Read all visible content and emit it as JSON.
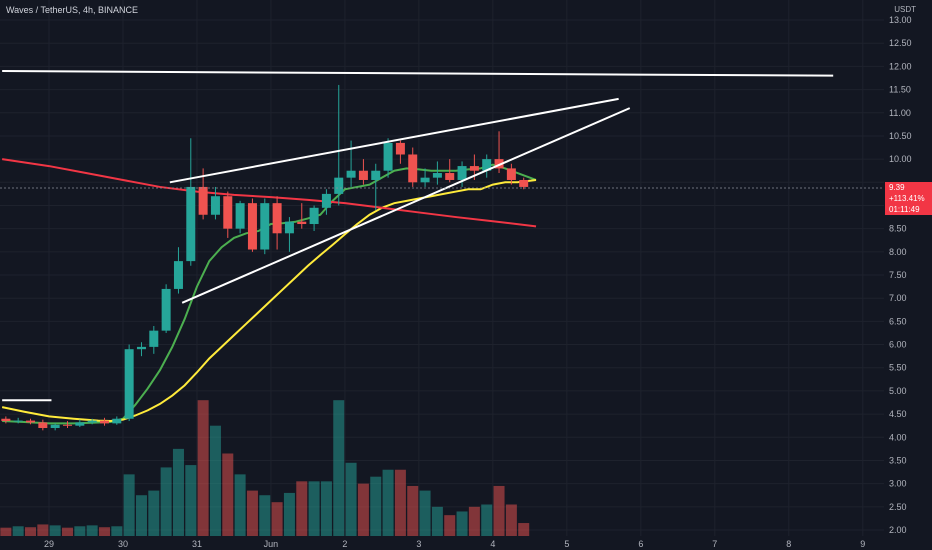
{
  "header": {
    "symbol_line": "Waves / TetherUS, 4h, BINANCE",
    "currency": "USDT"
  },
  "price_tag": {
    "price": "9.39",
    "change": "+113.41%",
    "countdown": "01:11:49"
  },
  "colors": {
    "background": "#131722",
    "up": "#26a69a",
    "down": "#ef5350",
    "ema_green": "#4caf50",
    "ema_yellow": "#ffeb3b",
    "ema_red": "#f23645",
    "trendline": "#ffffff",
    "tag": "#f23645"
  },
  "chart_data": {
    "type": "candlestick",
    "symbol": "Waves / TetherUS",
    "interval": "4h",
    "exchange": "BINANCE",
    "ylim": [
      2.0,
      13.0
    ],
    "y_ticks": [
      "2.00",
      "2.50",
      "3.00",
      "3.50",
      "4.00",
      "4.50",
      "5.00",
      "5.50",
      "6.00",
      "6.50",
      "7.00",
      "7.50",
      "8.00",
      "8.50",
      "9.00",
      "9.50",
      "10.00",
      "10.50",
      "11.00",
      "11.50",
      "12.00",
      "12.50",
      "13.00"
    ],
    "x_ticks": [
      {
        "label": "29",
        "x": 0
      },
      {
        "label": "30",
        "x": 6
      },
      {
        "label": "31",
        "x": 12
      },
      {
        "label": "Jun",
        "x": 18
      },
      {
        "label": "2",
        "x": 24
      },
      {
        "label": "3",
        "x": 30
      },
      {
        "label": "4",
        "x": 36
      },
      {
        "label": "5",
        "x": 42
      },
      {
        "label": "6",
        "x": 48
      },
      {
        "label": "7",
        "x": 54
      },
      {
        "label": "8",
        "x": 60
      },
      {
        "label": "9",
        "x": 66
      }
    ],
    "candles": [
      {
        "x": -3.5,
        "o": 4.4,
        "h": 4.45,
        "l": 4.3,
        "c": 4.35,
        "v": 2.05
      },
      {
        "x": -2.5,
        "o": 4.35,
        "h": 4.42,
        "l": 4.3,
        "c": 4.36,
        "v": 2.08
      },
      {
        "x": -1.5,
        "o": 4.36,
        "h": 4.4,
        "l": 4.28,
        "c": 4.32,
        "v": 2.06
      },
      {
        "x": -0.5,
        "o": 4.32,
        "h": 4.38,
        "l": 4.15,
        "c": 4.2,
        "v": 2.12
      },
      {
        "x": 0.5,
        "o": 4.2,
        "h": 4.3,
        "l": 4.15,
        "c": 4.27,
        "v": 2.1
      },
      {
        "x": 1.5,
        "o": 4.27,
        "h": 4.35,
        "l": 4.2,
        "c": 4.25,
        "v": 2.05
      },
      {
        "x": 2.5,
        "o": 4.25,
        "h": 4.38,
        "l": 4.22,
        "c": 4.32,
        "v": 2.08
      },
      {
        "x": 3.5,
        "o": 4.32,
        "h": 4.4,
        "l": 4.28,
        "c": 4.36,
        "v": 2.1
      },
      {
        "x": 4.5,
        "o": 4.36,
        "h": 4.42,
        "l": 4.25,
        "c": 4.3,
        "v": 2.06
      },
      {
        "x": 5.5,
        "o": 4.3,
        "h": 4.45,
        "l": 4.27,
        "c": 4.4,
        "v": 2.08
      },
      {
        "x": 6.5,
        "o": 4.4,
        "h": 6.0,
        "l": 4.35,
        "c": 5.9,
        "v": 3.2
      },
      {
        "x": 7.5,
        "o": 5.9,
        "h": 6.05,
        "l": 5.75,
        "c": 5.95,
        "v": 2.75
      },
      {
        "x": 8.5,
        "o": 5.95,
        "h": 6.4,
        "l": 5.8,
        "c": 6.3,
        "v": 2.85
      },
      {
        "x": 9.5,
        "o": 6.3,
        "h": 7.3,
        "l": 6.25,
        "c": 7.2,
        "v": 3.35
      },
      {
        "x": 10.5,
        "o": 7.2,
        "h": 8.1,
        "l": 7.1,
        "c": 7.8,
        "v": 3.75
      },
      {
        "x": 11.5,
        "o": 7.8,
        "h": 10.45,
        "l": 7.7,
        "c": 9.4,
        "v": 3.4
      },
      {
        "x": 12.5,
        "o": 9.4,
        "h": 9.8,
        "l": 8.7,
        "c": 8.8,
        "v": 4.8
      },
      {
        "x": 13.5,
        "o": 8.8,
        "h": 9.4,
        "l": 8.7,
        "c": 9.2,
        "v": 4.25
      },
      {
        "x": 14.5,
        "o": 9.2,
        "h": 9.3,
        "l": 8.3,
        "c": 8.5,
        "v": 3.65
      },
      {
        "x": 15.5,
        "o": 8.5,
        "h": 9.1,
        "l": 8.4,
        "c": 9.05,
        "v": 3.2
      },
      {
        "x": 16.5,
        "o": 9.05,
        "h": 9.15,
        "l": 8.0,
        "c": 8.05,
        "v": 2.85
      },
      {
        "x": 17.5,
        "o": 8.05,
        "h": 9.15,
        "l": 7.95,
        "c": 9.05,
        "v": 2.75
      },
      {
        "x": 18.5,
        "o": 9.05,
        "h": 9.2,
        "l": 8.05,
        "c": 8.4,
        "v": 2.6
      },
      {
        "x": 19.5,
        "o": 8.4,
        "h": 8.75,
        "l": 8.0,
        "c": 8.65,
        "v": 2.8
      },
      {
        "x": 20.5,
        "o": 8.65,
        "h": 9.05,
        "l": 8.5,
        "c": 8.6,
        "v": 3.05
      },
      {
        "x": 21.5,
        "o": 8.6,
        "h": 9.0,
        "l": 8.45,
        "c": 8.95,
        "v": 3.05
      },
      {
        "x": 22.5,
        "o": 8.95,
        "h": 9.35,
        "l": 8.8,
        "c": 9.25,
        "v": 3.05
      },
      {
        "x": 23.5,
        "o": 9.25,
        "h": 11.6,
        "l": 9.0,
        "c": 9.6,
        "v": 4.8
      },
      {
        "x": 24.5,
        "o": 9.6,
        "h": 10.4,
        "l": 9.4,
        "c": 9.75,
        "v": 3.45
      },
      {
        "x": 25.5,
        "o": 9.75,
        "h": 10.0,
        "l": 9.45,
        "c": 9.55,
        "v": 3.0
      },
      {
        "x": 26.5,
        "o": 9.55,
        "h": 9.9,
        "l": 8.9,
        "c": 9.75,
        "v": 3.15
      },
      {
        "x": 27.5,
        "o": 9.75,
        "h": 10.45,
        "l": 9.6,
        "c": 10.35,
        "v": 3.3
      },
      {
        "x": 28.5,
        "o": 10.35,
        "h": 10.4,
        "l": 9.9,
        "c": 10.1,
        "v": 3.3
      },
      {
        "x": 29.5,
        "o": 10.1,
        "h": 10.25,
        "l": 9.4,
        "c": 9.5,
        "v": 2.95
      },
      {
        "x": 30.5,
        "o": 9.5,
        "h": 9.8,
        "l": 9.4,
        "c": 9.6,
        "v": 2.85
      },
      {
        "x": 31.5,
        "o": 9.6,
        "h": 9.95,
        "l": 9.45,
        "c": 9.7,
        "v": 2.5
      },
      {
        "x": 32.5,
        "o": 9.7,
        "h": 10.0,
        "l": 9.5,
        "c": 9.55,
        "v": 2.32
      },
      {
        "x": 33.5,
        "o": 9.55,
        "h": 9.95,
        "l": 9.4,
        "c": 9.85,
        "v": 2.4
      },
      {
        "x": 34.5,
        "o": 9.85,
        "h": 10.1,
        "l": 9.55,
        "c": 9.75,
        "v": 2.5
      },
      {
        "x": 35.5,
        "o": 9.75,
        "h": 10.1,
        "l": 9.6,
        "c": 10.0,
        "v": 2.55
      },
      {
        "x": 36.5,
        "o": 10.0,
        "h": 10.6,
        "l": 9.7,
        "c": 9.8,
        "v": 2.95
      },
      {
        "x": 37.5,
        "o": 9.8,
        "h": 9.9,
        "l": 9.45,
        "c": 9.55,
        "v": 2.55
      },
      {
        "x": 38.5,
        "o": 9.55,
        "h": 9.6,
        "l": 9.35,
        "c": 9.4,
        "v": 2.15
      }
    ],
    "series": [
      {
        "type": "line",
        "x": [
          -3.8,
          -2,
          0,
          2,
          4,
          5,
          6,
          7,
          8,
          9,
          10,
          11,
          12,
          13,
          14,
          15,
          16,
          17,
          18,
          19,
          20,
          21,
          22,
          23,
          24,
          25,
          26,
          27,
          28,
          29,
          30,
          31,
          32,
          33,
          34,
          35,
          36,
          37,
          38,
          39.5
        ],
        "y": [
          4.35,
          4.33,
          4.3,
          4.3,
          4.32,
          4.33,
          4.4,
          4.7,
          5.05,
          5.45,
          5.95,
          6.55,
          7.25,
          7.8,
          8.1,
          8.3,
          8.4,
          8.45,
          8.6,
          8.62,
          8.65,
          8.72,
          8.8,
          9.1,
          9.35,
          9.4,
          9.45,
          9.6,
          9.75,
          9.8,
          9.78,
          9.75,
          9.75,
          9.75,
          9.78,
          9.8,
          9.88,
          9.8,
          9.7,
          9.55
        ]
      },
      {
        "type": "line",
        "x": [
          -3.8,
          -2,
          0,
          2,
          4,
          5,
          6,
          7,
          8,
          9,
          10,
          11,
          12,
          13,
          14,
          15,
          16,
          17,
          18,
          19,
          20,
          21,
          22,
          23,
          24,
          25,
          26,
          27,
          28,
          29,
          30,
          31,
          32,
          33,
          34,
          35,
          36,
          37,
          38,
          39.5
        ],
        "y": [
          4.65,
          4.55,
          4.45,
          4.4,
          4.36,
          4.35,
          4.38,
          4.47,
          4.58,
          4.72,
          4.9,
          5.12,
          5.4,
          5.7,
          5.95,
          6.2,
          6.45,
          6.7,
          6.95,
          7.2,
          7.45,
          7.7,
          7.93,
          8.15,
          8.38,
          8.6,
          8.8,
          8.95,
          9.05,
          9.1,
          9.15,
          9.2,
          9.25,
          9.3,
          9.35,
          9.35,
          9.45,
          9.5,
          9.5,
          9.55
        ]
      },
      {
        "type": "line",
        "x": [
          -3.8,
          0,
          3,
          6,
          9,
          12,
          15,
          18,
          21,
          24,
          27,
          30,
          33,
          36,
          39.5
        ],
        "y": [
          10.0,
          9.85,
          9.7,
          9.55,
          9.4,
          9.3,
          9.23,
          9.18,
          9.12,
          9.05,
          8.95,
          8.85,
          8.75,
          8.66,
          8.55
        ]
      }
    ],
    "trendlines": [
      {
        "x1": -3.8,
        "y1": 11.9,
        "x2": 63.6,
        "y2": 11.8
      },
      {
        "x1": -3.8,
        "y1": 4.8,
        "x2": 0.2,
        "y2": 4.8
      },
      {
        "x1": 9.8,
        "y1": 9.5,
        "x2": 46.2,
        "y2": 11.3
      },
      {
        "x1": 10.8,
        "y1": 6.9,
        "x2": 47.1,
        "y2": 11.1
      }
    ],
    "volume_scale": "volume pane drawn on the price scale",
    "grid": true
  }
}
